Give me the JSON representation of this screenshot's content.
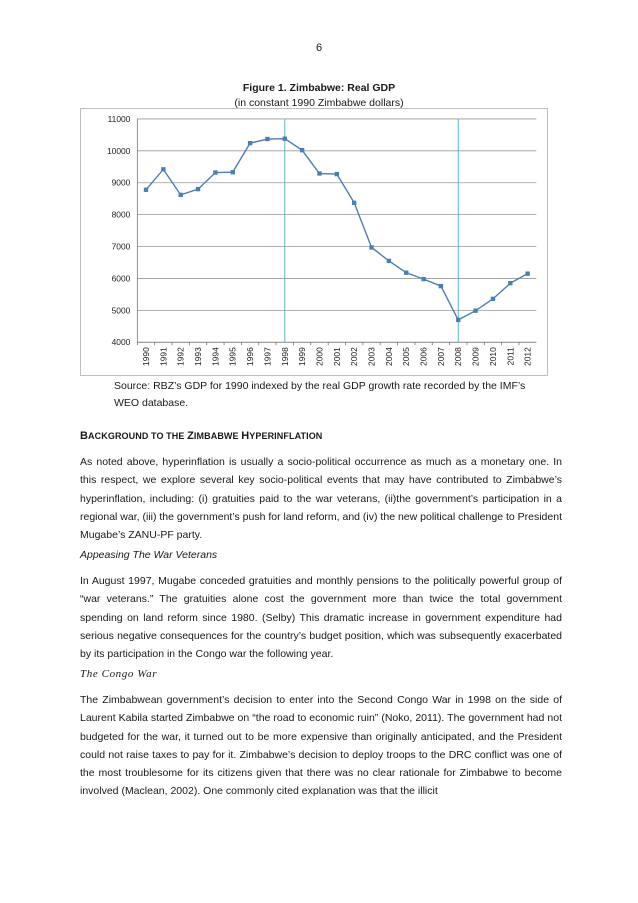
{
  "page_number": "6",
  "figure": {
    "title": "Figure 1. Zimbabwe: Real GDP",
    "subtitle": "(in constant 1990 Zimbabwe dollars)",
    "source": "Source: RBZ’s GDP for 1990 indexed by the real GDP growth rate recorded by the IMF’s WEO database."
  },
  "chart_data": {
    "type": "line",
    "title": "",
    "xlabel": "",
    "ylabel": "",
    "x": [
      "1990",
      "1991",
      "1992",
      "1993",
      "1994",
      "1995",
      "1996",
      "1997",
      "1998",
      "1999",
      "2000",
      "2001",
      "2002",
      "2003",
      "2004",
      "2005",
      "2006",
      "2007",
      "2008",
      "2009",
      "2010",
      "2011",
      "2012"
    ],
    "series": [
      {
        "values": [
          8780,
          9420,
          8620,
          8800,
          9320,
          9330,
          10240,
          10370,
          10380,
          10020,
          9290,
          9270,
          8370,
          6970,
          6550,
          6180,
          5980,
          5760,
          4700,
          4990,
          5360,
          5850,
          6150
        ]
      }
    ],
    "ylim": [
      4000,
      11000
    ],
    "yticks": [
      4000,
      5000,
      6000,
      7000,
      8000,
      9000,
      10000,
      11000
    ],
    "grid": "horizontal",
    "legend": "none",
    "line_color": "#4a7eb5",
    "marker_color": "#4a7eb5",
    "vertical_markers": [
      "1998",
      "2008"
    ],
    "vertical_marker_color": "#5ab4cf"
  },
  "section": {
    "heading_parts": [
      {
        "text": "B",
        "small": false
      },
      {
        "text": "ACKGROUND TO THE ",
        "small": true
      },
      {
        "text": "Z",
        "small": false
      },
      {
        "text": "IMBABWE ",
        "small": true
      },
      {
        "text": "H",
        "small": false
      },
      {
        "text": "YPERINFLATION",
        "small": true
      }
    ],
    "para1": "As noted above, hyperinflation is usually a socio-political occurrence as much as a monetary one. In this respect, we explore several key socio-political events that may have contributed to Zimbabwe’s hyperinflation, including: (i) gratuities paid to the war veterans, (ii)the government’s participation in a regional war, (iii) the government’s push for land reform, and (iv) the new political challenge to President Mugabe’s ZANU-PF party.",
    "subheading1": "Appeasing The War Veterans",
    "para2": "In August 1997, Mugabe conceded gratuities and monthly pensions to the politically powerful group of “war veterans.” The gratuities alone cost the government more than twice the total government spending on land reform since 1980. (Selby) This dramatic increase in government expenditure had serious negative consequences for the country’s budget position, which was subsequently exacerbated by its participation in the Congo war the following year.",
    "subheading2": "The Congo War",
    "para3": "The Zimbabwean government’s decision to enter into the Second Congo War in 1998 on the side of Laurent Kabila started Zimbabwe on “the road to economic ruin” (Noko, 2011). The government had not budgeted for the war, it turned out to be more expensive than originally anticipated, and the President could not raise taxes to pay for it. Zimbabwe’s decision to deploy troops to the DRC conflict was one of the most troublesome for its citizens given that there was no clear rationale for Zimbabwe to become involved (Maclean, 2002). One commonly cited explanation was that the illicit"
  }
}
